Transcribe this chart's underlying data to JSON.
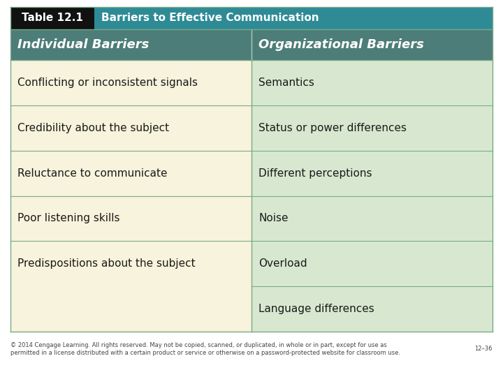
{
  "title_label": "Table 12.1",
  "title_label_bg": "#111111",
  "title_label_fg": "#ffffff",
  "header_title": "Barriers to Effective Communication",
  "header_title_bg": "#2e8b96",
  "header_title_fg": "#ffffff",
  "col1_header": "Individual Barriers",
  "col2_header": "Organizational Barriers",
  "col_header_bg": "#4d7d78",
  "col_header_fg": "#ffffff",
  "col1_bg": "#f7f3dc",
  "col2_bg": "#d8e8d0",
  "divider_color": "#7aaa88",
  "col1_items": [
    "Conflicting or inconsistent signals",
    "Credibility about the subject",
    "Reluctance to communicate",
    "Poor listening skills",
    "Predispositions about the subject"
  ],
  "col2_items": [
    "Semantics",
    "Status or power differences",
    "Different perceptions",
    "Noise",
    "Overload",
    "Language differences"
  ],
  "footer_text": "© 2014 Cengage Learning. All rights reserved. May not be copied, scanned, or duplicated, in whole or in part, except for use as\npermitted in a license distributed with a certain product or service or otherwise on a password-protected website for classroom use.",
  "footer_right": "12–36",
  "bg_color": "#ffffff",
  "item_fontsize": 11,
  "header_fontsize": 13,
  "title_fontsize": 11,
  "footer_fontsize": 6
}
